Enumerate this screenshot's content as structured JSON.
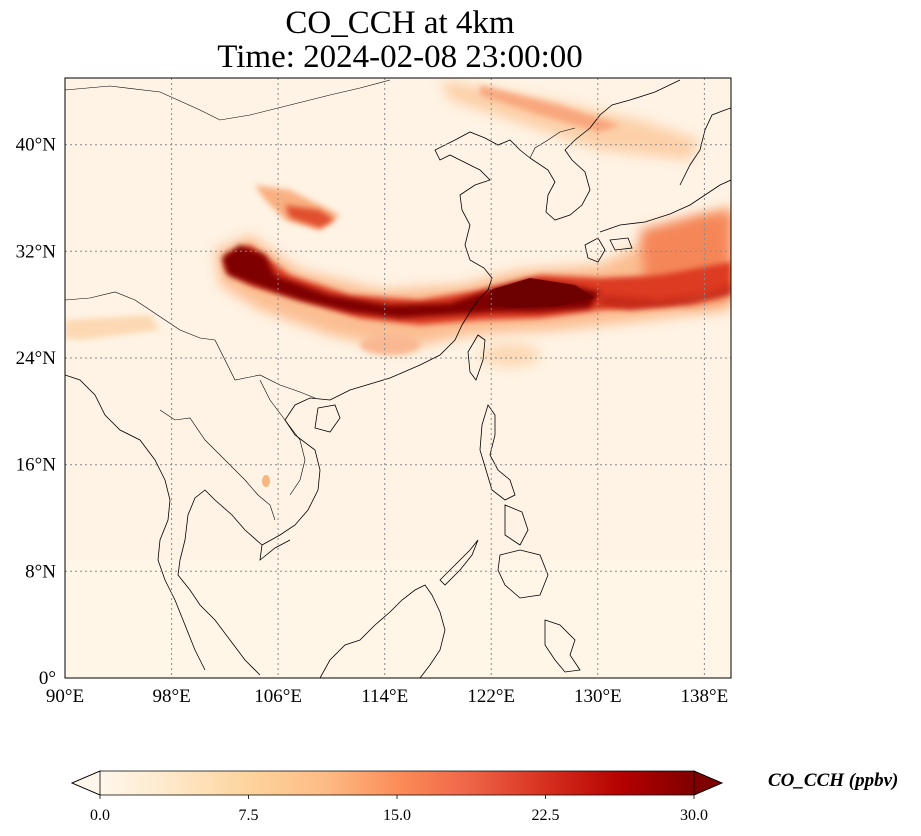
{
  "title_line1": "CO_CCH at 4km",
  "title_line2": "Time: 2024-02-08 23:00:00",
  "map": {
    "lon_range": [
      90,
      140
    ],
    "lat_range": [
      0,
      45
    ],
    "lon_ticks": [
      "90°E",
      "98°E",
      "106°E",
      "114°E",
      "122°E",
      "130°E",
      "138°E"
    ],
    "lat_ticks": [
      "0°",
      "8°N",
      "16°N",
      "24°N",
      "32°N",
      "40°N"
    ],
    "gridlines": true,
    "colormap": "OrRd"
  },
  "colorbar": {
    "label": "CO_CCH (ppbv)",
    "min": 0.0,
    "max": 30.0,
    "ticks": [
      "0.0",
      "7.5",
      "15.0",
      "22.5",
      "30.0"
    ],
    "extend": "both",
    "colors": [
      "#fff7ec",
      "#fee8c8",
      "#fdd49e",
      "#fdbb84",
      "#fc8d59",
      "#ef6548",
      "#d7301f",
      "#b30000",
      "#7f0000"
    ]
  }
}
